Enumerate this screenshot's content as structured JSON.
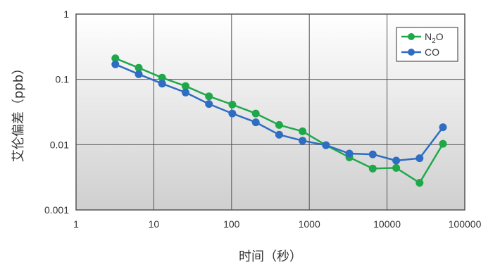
{
  "chart_data": {
    "type": "line",
    "xscale": "log",
    "yscale": "log",
    "xlim": [
      1,
      100000
    ],
    "ylim": [
      0.001,
      1
    ],
    "xticks": [
      "1",
      "10",
      "100",
      "1000",
      "10000",
      "100000"
    ],
    "yticks": [
      "0.001",
      "0.01",
      "0.1",
      "1"
    ],
    "xlabel": "时间（秒）",
    "ylabel": "艾伦偏差（ppb）",
    "grid": true,
    "legend_position": "top-right",
    "series": [
      {
        "name": "N2O",
        "legend_main": "N",
        "legend_sub": "2",
        "legend_tail": "O",
        "color": "#1fa84a",
        "x": [
          3.2,
          6.4,
          12.8,
          25.6,
          51.2,
          102.4,
          204.8,
          409.6,
          819.2,
          1638.4,
          3276.8,
          6553.6,
          13107.2,
          26214.4,
          52428.8
        ],
        "y": [
          0.21,
          0.15,
          0.106,
          0.079,
          0.055,
          0.041,
          0.03,
          0.02,
          0.016,
          0.0098,
          0.0064,
          0.0043,
          0.0044,
          0.0026,
          0.0103
        ]
      },
      {
        "name": "CO",
        "legend_main": "CO",
        "legend_sub": "",
        "legend_tail": "",
        "color": "#2f6dc2",
        "x": [
          3.2,
          6.4,
          12.8,
          25.6,
          51.2,
          102.4,
          204.8,
          409.6,
          819.2,
          1638.4,
          3276.8,
          6553.6,
          13107.2,
          26214.4,
          52428.8
        ],
        "y": [
          0.17,
          0.12,
          0.086,
          0.063,
          0.042,
          0.03,
          0.022,
          0.0142,
          0.0115,
          0.0098,
          0.0073,
          0.0071,
          0.0057,
          0.0062,
          0.0185
        ]
      }
    ]
  }
}
